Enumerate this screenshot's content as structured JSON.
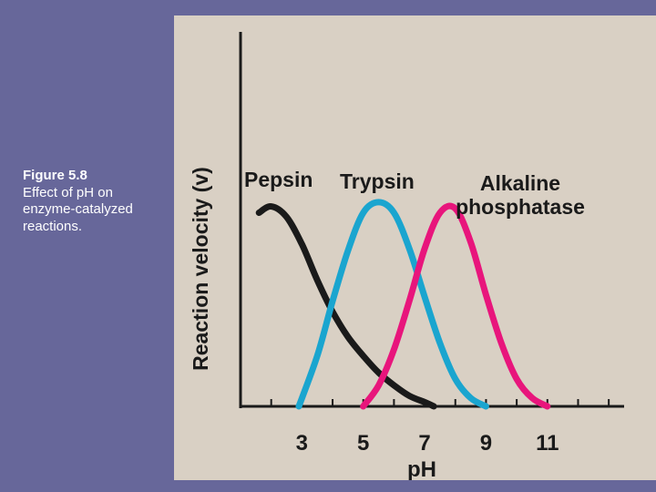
{
  "caption": {
    "label": "Figure 5.8",
    "text": "Effect of pH on enzyme-catalyzed reactions."
  },
  "chart_data": {
    "type": "line",
    "title": "",
    "xlabel": "pH",
    "ylabel": "Reaction velocity (v)",
    "xlim": [
      1,
      13.5
    ],
    "ylim": [
      0,
      1
    ],
    "x_ticks": [
      3,
      5,
      7,
      9,
      11
    ],
    "minor_tick_step": 1,
    "grid": false,
    "series": [
      {
        "name": "Pepsin",
        "label_lines": [
          "Pepsin"
        ],
        "color": "#1a1a1a",
        "x": [
          1.6,
          2.0,
          2.5,
          3.0,
          3.5,
          4.0,
          4.5,
          5.0,
          5.5,
          6.0,
          6.5,
          7.0,
          7.3
        ],
        "y": [
          0.92,
          0.95,
          0.9,
          0.77,
          0.6,
          0.45,
          0.33,
          0.24,
          0.16,
          0.1,
          0.05,
          0.02,
          0.0
        ]
      },
      {
        "name": "Trypsin",
        "label_lines": [
          "Trypsin"
        ],
        "color": "#1aa5cf",
        "x": [
          2.9,
          3.5,
          4.0,
          4.5,
          5.0,
          5.5,
          6.0,
          6.5,
          7.0,
          7.5,
          8.0,
          8.5,
          9.0
        ],
        "y": [
          0.0,
          0.24,
          0.5,
          0.74,
          0.92,
          0.97,
          0.92,
          0.75,
          0.52,
          0.3,
          0.13,
          0.04,
          0.0
        ]
      },
      {
        "name": "Alkaline phosphatase",
        "label_lines": [
          "Alkaline",
          "phosphatase"
        ],
        "color": "#e8157c",
        "x": [
          5.0,
          5.5,
          6.0,
          6.5,
          7.0,
          7.5,
          8.0,
          8.5,
          9.0,
          9.5,
          10.0,
          10.5,
          11.0
        ],
        "y": [
          0.0,
          0.1,
          0.27,
          0.5,
          0.75,
          0.92,
          0.94,
          0.78,
          0.53,
          0.3,
          0.13,
          0.04,
          0.0
        ]
      }
    ]
  }
}
